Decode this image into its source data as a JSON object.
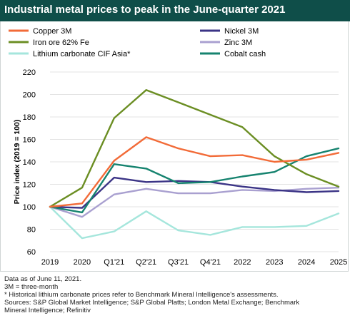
{
  "title": "Industrial metal prices to peak in the June-quarter 2021",
  "colors": {
    "title_bg": "#0f4e49",
    "copper": "#f26b38",
    "iron": "#6b8e23",
    "lithium": "#a5e6dc",
    "nickel": "#3b3486",
    "zinc": "#a9a0d0",
    "cobalt": "#16836f"
  },
  "footnotes": [
    "Data as of June 11, 2021.",
    "3M = three-month",
    "* Historical lithium carbonate prices refer to Benchmark Mineral Intelligence's assessments.",
    "Sources: S&P Global Market Intelligence; S&P Global Platts; London Metal Exchange; Benchmark",
    "Mineral Intelligence; Refinitiv"
  ],
  "chart_data": {
    "type": "line",
    "title": "Industrial metal prices to peak in the June-quarter 2021",
    "xlabel": "",
    "ylabel": "Price index (2019 = 100)",
    "categories": [
      "2019",
      "2020",
      "Q1'21",
      "Q2'21",
      "Q3'21",
      "Q4'21",
      "2022",
      "2023",
      "2024",
      "2025"
    ],
    "ylim": [
      60,
      220
    ],
    "yticks": [
      60,
      80,
      100,
      120,
      140,
      160,
      180,
      200,
      220
    ],
    "grid": "horizontal",
    "legend_position": "top",
    "series": [
      {
        "name": "Copper 3M",
        "color": "#f26b38",
        "values": [
          100,
          103,
          141,
          162,
          152,
          145,
          146,
          140,
          142,
          148
        ]
      },
      {
        "name": "Nickel 3M",
        "color": "#3b3486",
        "values": [
          100,
          99,
          126,
          122,
          123,
          122,
          118,
          115,
          113,
          114
        ]
      },
      {
        "name": "Iron ore 62% Fe",
        "color": "#6b8e23",
        "values": [
          100,
          117,
          179,
          204,
          193,
          182,
          171,
          145,
          129,
          118
        ]
      },
      {
        "name": "Zinc 3M",
        "color": "#a9a0d0",
        "values": [
          100,
          91,
          111,
          116,
          112,
          112,
          115,
          114,
          116,
          117
        ]
      },
      {
        "name": "Lithium carbonate CIF Asia*",
        "color": "#a5e6dc",
        "values": [
          100,
          72,
          78,
          96,
          79,
          75,
          82,
          82,
          83,
          94
        ]
      },
      {
        "name": "Cobalt cash",
        "color": "#16836f",
        "values": [
          100,
          95,
          138,
          134,
          121,
          122,
          127,
          131,
          145,
          152
        ]
      }
    ]
  }
}
